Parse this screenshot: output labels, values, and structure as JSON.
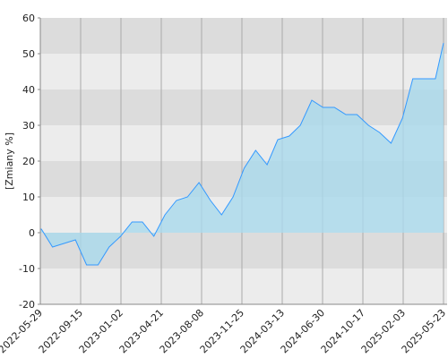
{
  "chart_data": {
    "type": "area",
    "y_label": "[Zmiany %]",
    "x": [
      "2022-05-29",
      "2022-06-01",
      "2022-07-01",
      "2022-08-01",
      "2022-09-01",
      "2022-10-01",
      "2022-11-01",
      "2022-12-01",
      "2023-01-01",
      "2023-02-01",
      "2023-03-01",
      "2023-04-01",
      "2023-05-01",
      "2023-06-01",
      "2023-07-01",
      "2023-08-01",
      "2023-09-01",
      "2023-10-01",
      "2023-11-01",
      "2023-12-01",
      "2024-01-01",
      "2024-02-01",
      "2024-03-01",
      "2024-04-01",
      "2024-05-01",
      "2024-06-01",
      "2024-07-01",
      "2024-08-01",
      "2024-09-01",
      "2024-10-01",
      "2024-11-01",
      "2024-12-01",
      "2025-01-01",
      "2025-02-01",
      "2025-03-01",
      "2025-04-01",
      "2025-05-01",
      "2025-05-23"
    ],
    "series": [
      {
        "color": "#3399ff",
        "fill": "#a9d9ec",
        "values": [
          1,
          1,
          -4,
          -3,
          -2,
          -9,
          -9,
          -4,
          -1,
          3,
          3,
          -1,
          5,
          9,
          10,
          14,
          9,
          5,
          10,
          18,
          23,
          19,
          26,
          27,
          30,
          37,
          35,
          35,
          33,
          33,
          30,
          28,
          25,
          32,
          43,
          43,
          43,
          53
        ]
      }
    ],
    "xlim": [
      "2022-05-29",
      "2025-05-23"
    ],
    "xticks": [
      "2022-05-29",
      "2022-09-15",
      "2023-01-02",
      "2023-04-21",
      "2023-08-08",
      "2023-11-25",
      "2024-03-13",
      "2024-06-30",
      "2024-10-17",
      "2025-02-03",
      "2025-05-23"
    ],
    "ylim": [
      -20,
      60
    ],
    "yticks": [
      -20,
      -10,
      0,
      10,
      20,
      30,
      40,
      50,
      60
    ],
    "grid": true
  }
}
